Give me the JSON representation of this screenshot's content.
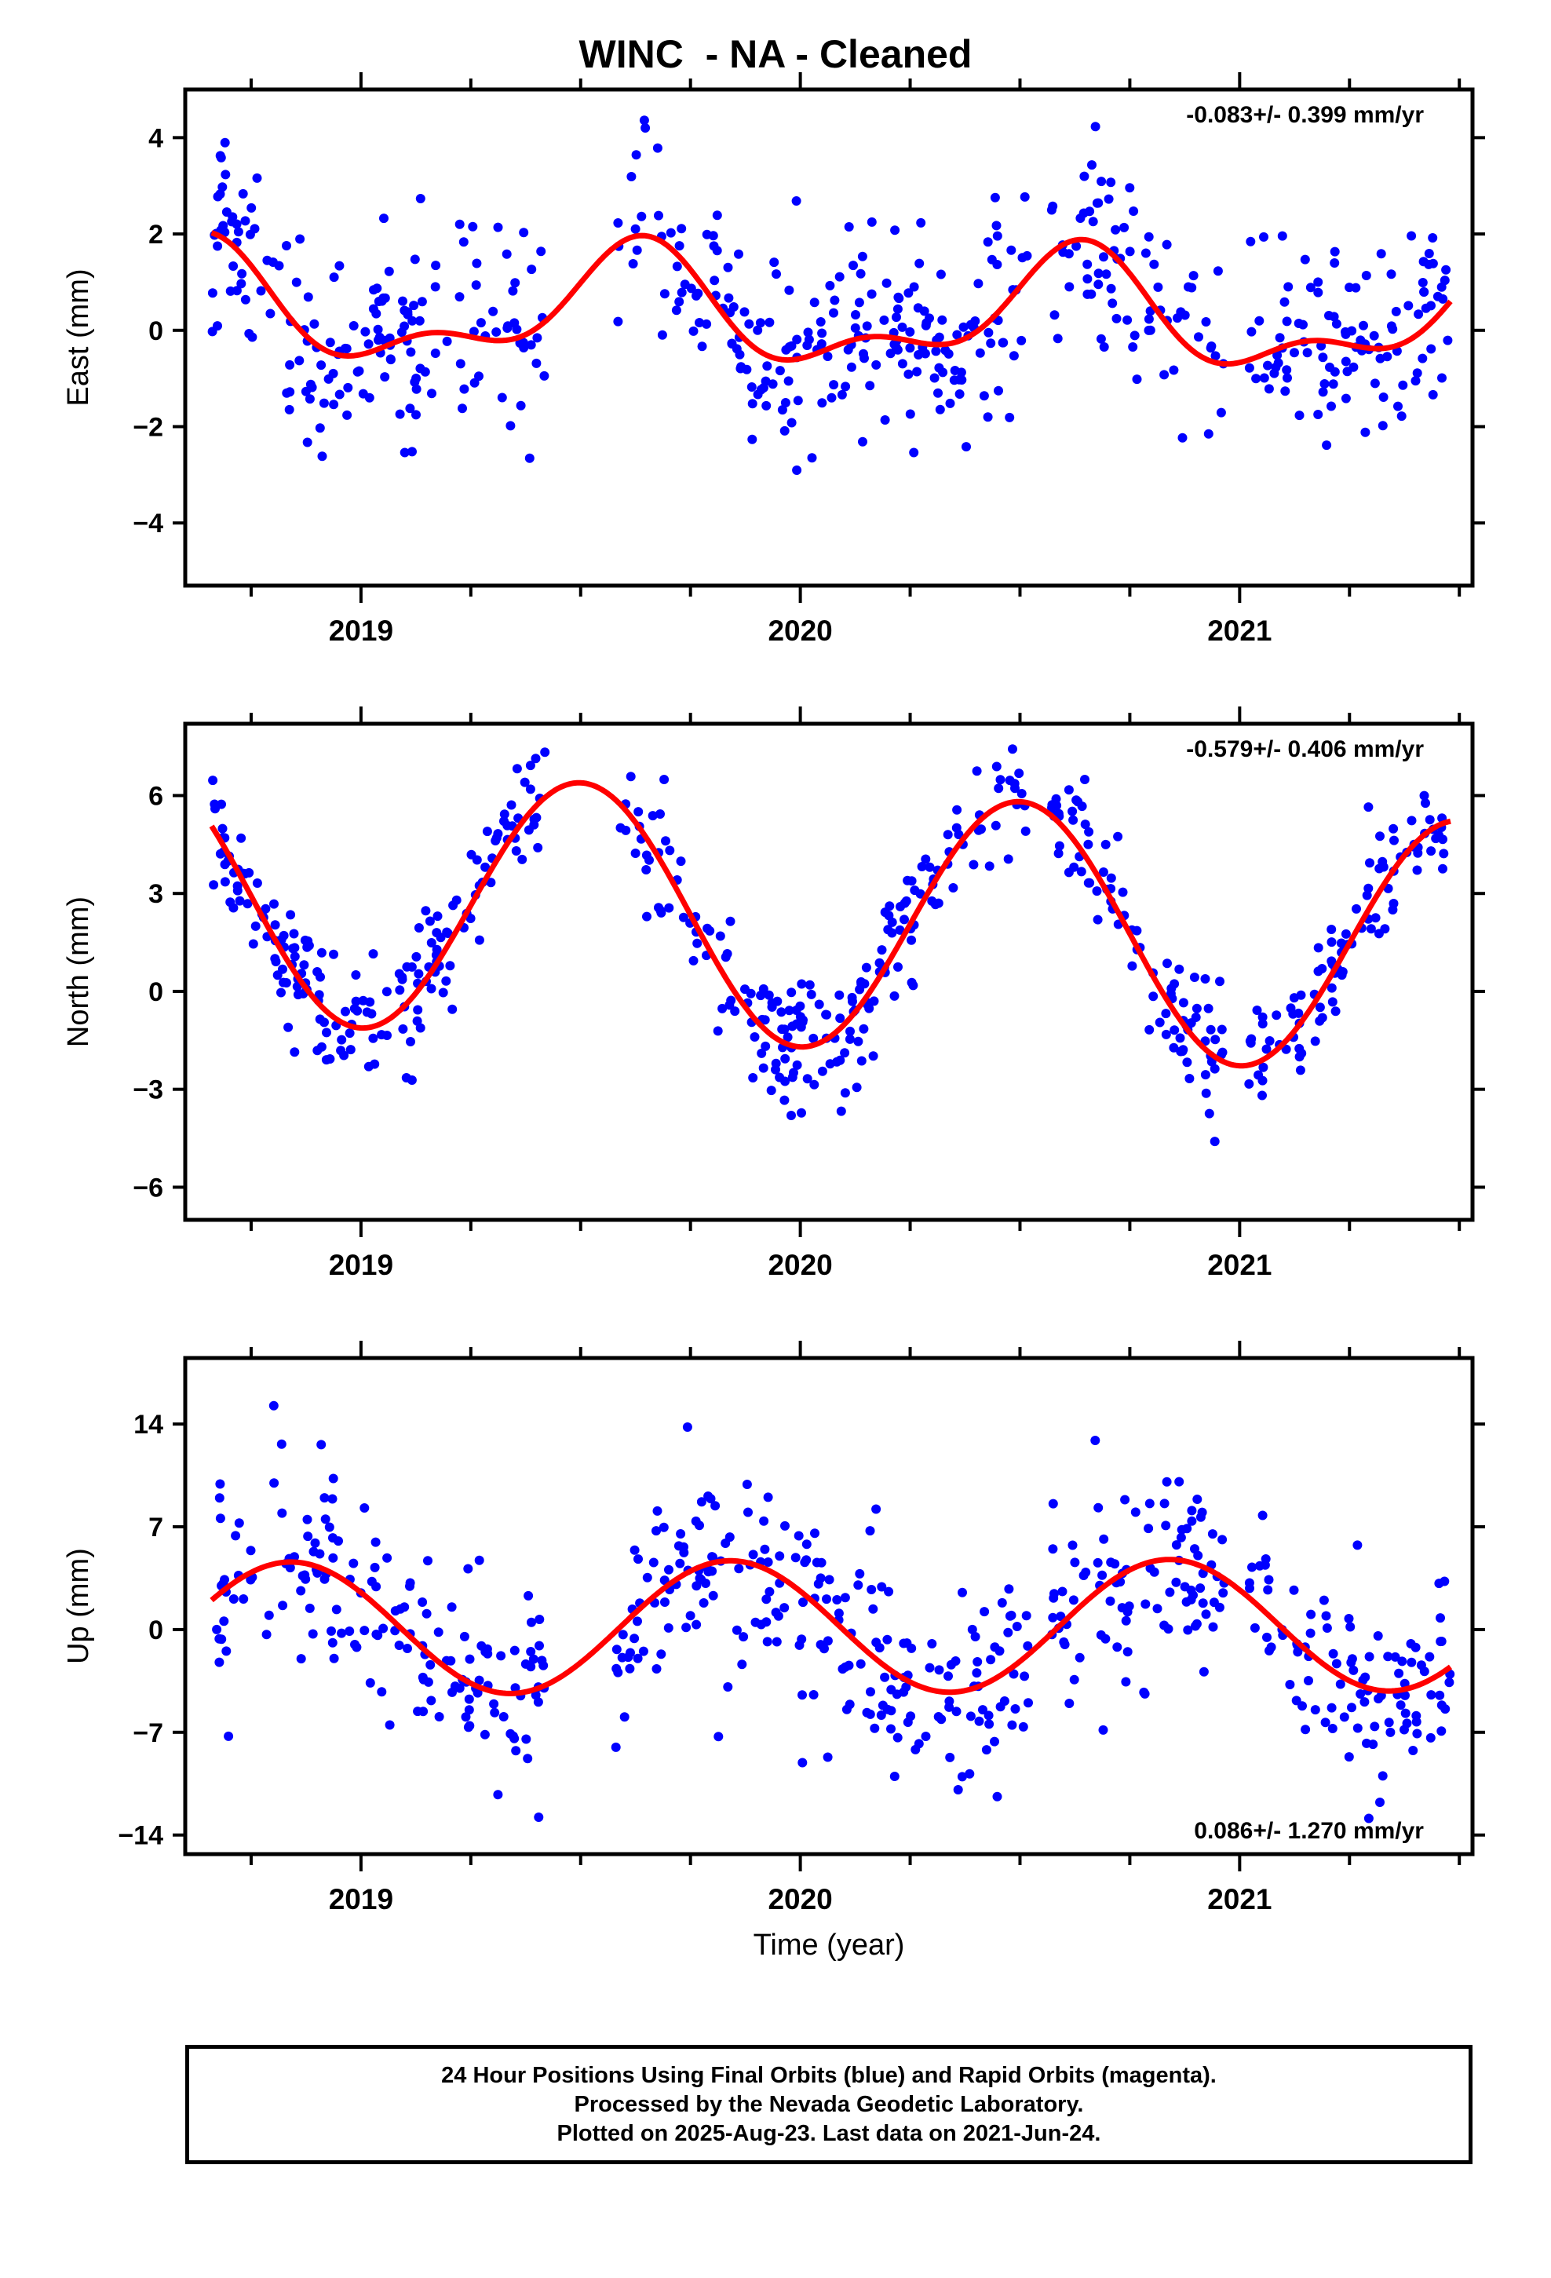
{
  "title": "WINC  - NA - Cleaned",
  "x_axis_label": "Time (year)",
  "footer": {
    "line1": "24 Hour Positions Using Final Orbits (blue) and Rapid Orbits (magenta).",
    "line2": "Processed by the Nevada Geodetic Laboratory.",
    "line3": "Plotted on 2025-Aug-23. Last data on 2021-Jun-24."
  },
  "colors": {
    "points": "#0000ff",
    "fit": "#ff0000",
    "frame": "#000000"
  },
  "chart_data": [
    {
      "type": "scatter",
      "name": "east",
      "ylabel": "East (mm)",
      "rate_label": "-0.083+/- 0.399 mm/yr",
      "rate_position": "top-right",
      "xlim": [
        2018.6,
        2021.53
      ],
      "ylim": [
        -5.3,
        5.0
      ],
      "yticks": [
        4,
        2,
        0,
        -2,
        -4
      ],
      "ytick_labels": [
        "4",
        "2",
        "0",
        "−2",
        "−4"
      ],
      "xticks": [
        2019,
        2020,
        2021
      ],
      "xtick_labels": [
        "2019",
        "2020",
        "2021"
      ],
      "fit_params": {
        "offset": 0.35,
        "trend": -0.083,
        "a1": 1.05,
        "ph1": 0.62,
        "a2": 0.55,
        "ph2": 0.15
      },
      "noise_sd": 1.05,
      "n_points": 620,
      "seed": 11,
      "grid": false
    },
    {
      "type": "scatter",
      "name": "north",
      "ylabel": "North (mm)",
      "rate_label": "-0.579+/- 0.406 mm/yr",
      "rate_position": "top-right",
      "xlim": [
        2018.6,
        2021.53
      ],
      "ylim": [
        -7.0,
        8.2
      ],
      "yticks": [
        6,
        3,
        0,
        -3,
        -6
      ],
      "ytick_labels": [
        "6",
        "3",
        "0",
        "−3",
        "−6"
      ],
      "xticks": [
        2019,
        2020,
        2021
      ],
      "xtick_labels": [
        "2019",
        "2020",
        "2021"
      ],
      "fit_params": {
        "offset": 2.2,
        "trend": -0.579,
        "a1": 3.9,
        "ph1": 0.5,
        "a2": 0.0,
        "ph2": 0.0
      },
      "noise_sd": 0.95,
      "n_points": 620,
      "seed": 23,
      "grid": false
    },
    {
      "type": "scatter",
      "name": "up",
      "ylabel": "Up (mm)",
      "rate_label": "0.086+/- 1.270 mm/yr",
      "rate_position": "bottom-right",
      "xlim": [
        2018.6,
        2021.53
      ],
      "ylim": [
        -15.3,
        18.5
      ],
      "yticks": [
        14,
        7,
        0,
        -7,
        -14
      ],
      "ytick_labels": [
        "14",
        "7",
        "0",
        "−7",
        "−14"
      ],
      "xticks": [
        2019,
        2020,
        2021
      ],
      "xtick_labels": [
        "2019",
        "2020",
        "2021"
      ],
      "fit_params": {
        "offset": 0.2,
        "trend": 0.086,
        "a1": 4.5,
        "ph1": 0.84,
        "a2": 0.0,
        "ph2": 0.0
      },
      "noise_sd": 3.6,
      "n_points": 620,
      "seed": 37,
      "grid": false
    }
  ]
}
